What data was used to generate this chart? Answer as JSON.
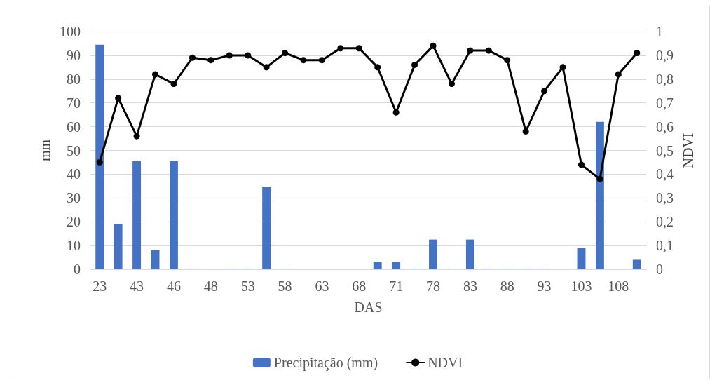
{
  "chart_data": {
    "type": "bar",
    "xlabel": "DAS",
    "ylabel": "mm",
    "y2label": "NDVI",
    "categories": [
      "23",
      null,
      "43",
      null,
      "46",
      null,
      "48",
      null,
      "53",
      null,
      "58",
      null,
      "63",
      null,
      "68",
      null,
      "71",
      null,
      "78",
      null,
      "83",
      null,
      "88",
      null,
      "93",
      null,
      "103",
      null,
      "108",
      null
    ],
    "series": [
      {
        "name": "Precipitação (mm)",
        "color": "#4472c4",
        "values": [
          94.5,
          19,
          45.5,
          8,
          45.5,
          0.2,
          0,
          0.2,
          0.2,
          34.5,
          0.2,
          0,
          0,
          0,
          0,
          3,
          3,
          0.2,
          12.5,
          0.2,
          12.5,
          0.2,
          0.2,
          0.2,
          0.2,
          0,
          9,
          62,
          0,
          4
        ]
      },
      {
        "name": "NDVI",
        "type": "line",
        "axis": "y2",
        "color": "#000000",
        "marker": "circle",
        "values": [
          0.45,
          0.72,
          0.56,
          0.82,
          0.78,
          0.89,
          0.88,
          0.9,
          0.9,
          0.85,
          0.91,
          0.88,
          0.88,
          0.93,
          0.93,
          0.85,
          0.66,
          0.86,
          0.94,
          0.78,
          0.92,
          0.92,
          0.88,
          0.58,
          0.75,
          0.85,
          0.44,
          0.38,
          0.82,
          0.91
        ]
      }
    ],
    "ylim": [
      0,
      100
    ],
    "yticks": [
      0,
      10,
      20,
      30,
      40,
      50,
      60,
      70,
      80,
      90,
      100
    ],
    "y2lim": [
      0,
      1
    ],
    "y2ticks": [
      0,
      {
        "value": 0.1,
        "label": "0,1"
      },
      {
        "value": 0.2,
        "label": "0,2"
      },
      {
        "value": 0.3,
        "label": "0,3"
      },
      {
        "value": 0.4,
        "label": "0,4"
      },
      {
        "value": 0.5,
        "label": "0,5"
      },
      {
        "value": 0.6,
        "label": "0,6"
      },
      {
        "value": 0.7,
        "label": "0,7"
      },
      {
        "value": 0.8,
        "label": "0,8"
      },
      {
        "value": 0.9,
        "label": "0,9"
      },
      1
    ],
    "grid": "y",
    "legend": "bottom"
  }
}
